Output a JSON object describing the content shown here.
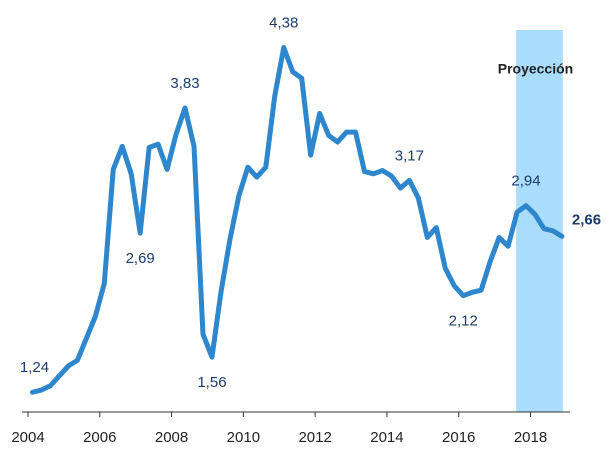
{
  "chart_data": {
    "type": "line",
    "x": [
      2004.125,
      2004.375,
      2004.625,
      2004.875,
      2005.125,
      2005.375,
      2005.625,
      2005.875,
      2006.125,
      2006.375,
      2006.625,
      2006.875,
      2007.125,
      2007.375,
      2007.625,
      2007.875,
      2008.125,
      2008.375,
      2008.625,
      2008.875,
      2009.125,
      2009.375,
      2009.625,
      2009.875,
      2010.125,
      2010.375,
      2010.625,
      2010.875,
      2011.125,
      2011.375,
      2011.625,
      2011.875,
      2012.125,
      2012.375,
      2012.625,
      2012.875,
      2013.125,
      2013.375,
      2013.625,
      2013.875,
      2014.125,
      2014.375,
      2014.625,
      2014.875,
      2015.125,
      2015.375,
      2015.625,
      2015.875,
      2016.125,
      2016.375,
      2016.625,
      2016.875,
      2017.125,
      2017.375,
      2017.625,
      2017.875,
      2018.125,
      2018.375,
      2018.625,
      2018.875
    ],
    "values": [
      1.24,
      1.26,
      1.3,
      1.39,
      1.48,
      1.53,
      1.73,
      1.93,
      2.23,
      3.27,
      3.48,
      3.23,
      2.69,
      3.47,
      3.5,
      3.27,
      3.59,
      3.83,
      3.48,
      1.77,
      1.56,
      2.15,
      2.63,
      3.03,
      3.29,
      3.2,
      3.29,
      3.94,
      4.38,
      4.16,
      4.1,
      3.4,
      3.78,
      3.58,
      3.52,
      3.61,
      3.61,
      3.25,
      3.23,
      3.26,
      3.21,
      3.1,
      3.17,
      3.01,
      2.65,
      2.74,
      2.37,
      2.21,
      2.12,
      2.15,
      2.17,
      2.43,
      2.65,
      2.57,
      2.88,
      2.94,
      2.86,
      2.73,
      2.71,
      2.66
    ],
    "value_labels": [
      "1,24",
      null,
      null,
      null,
      null,
      null,
      null,
      null,
      null,
      null,
      null,
      null,
      "2,69",
      null,
      null,
      null,
      null,
      "3,83",
      null,
      null,
      "1,56",
      null,
      null,
      null,
      null,
      null,
      null,
      null,
      "4,38",
      null,
      null,
      null,
      null,
      null,
      null,
      null,
      null,
      null,
      null,
      null,
      null,
      null,
      "3,17",
      null,
      null,
      null,
      null,
      null,
      "2,12",
      null,
      null,
      null,
      null,
      null,
      null,
      "2,94",
      null,
      null,
      null,
      "2,66"
    ],
    "color": "#2e86cc",
    "xlim": [
      2004,
      2019.1
    ],
    "xticks": [
      2004,
      2006,
      2008,
      2010,
      2012,
      2014,
      2016,
      2018
    ],
    "ylim": [
      1.06,
      4.54
    ],
    "projection": {
      "label": "Proyección",
      "from": 2017.6,
      "to": 2018.9,
      "color": "#aadcfc"
    }
  }
}
